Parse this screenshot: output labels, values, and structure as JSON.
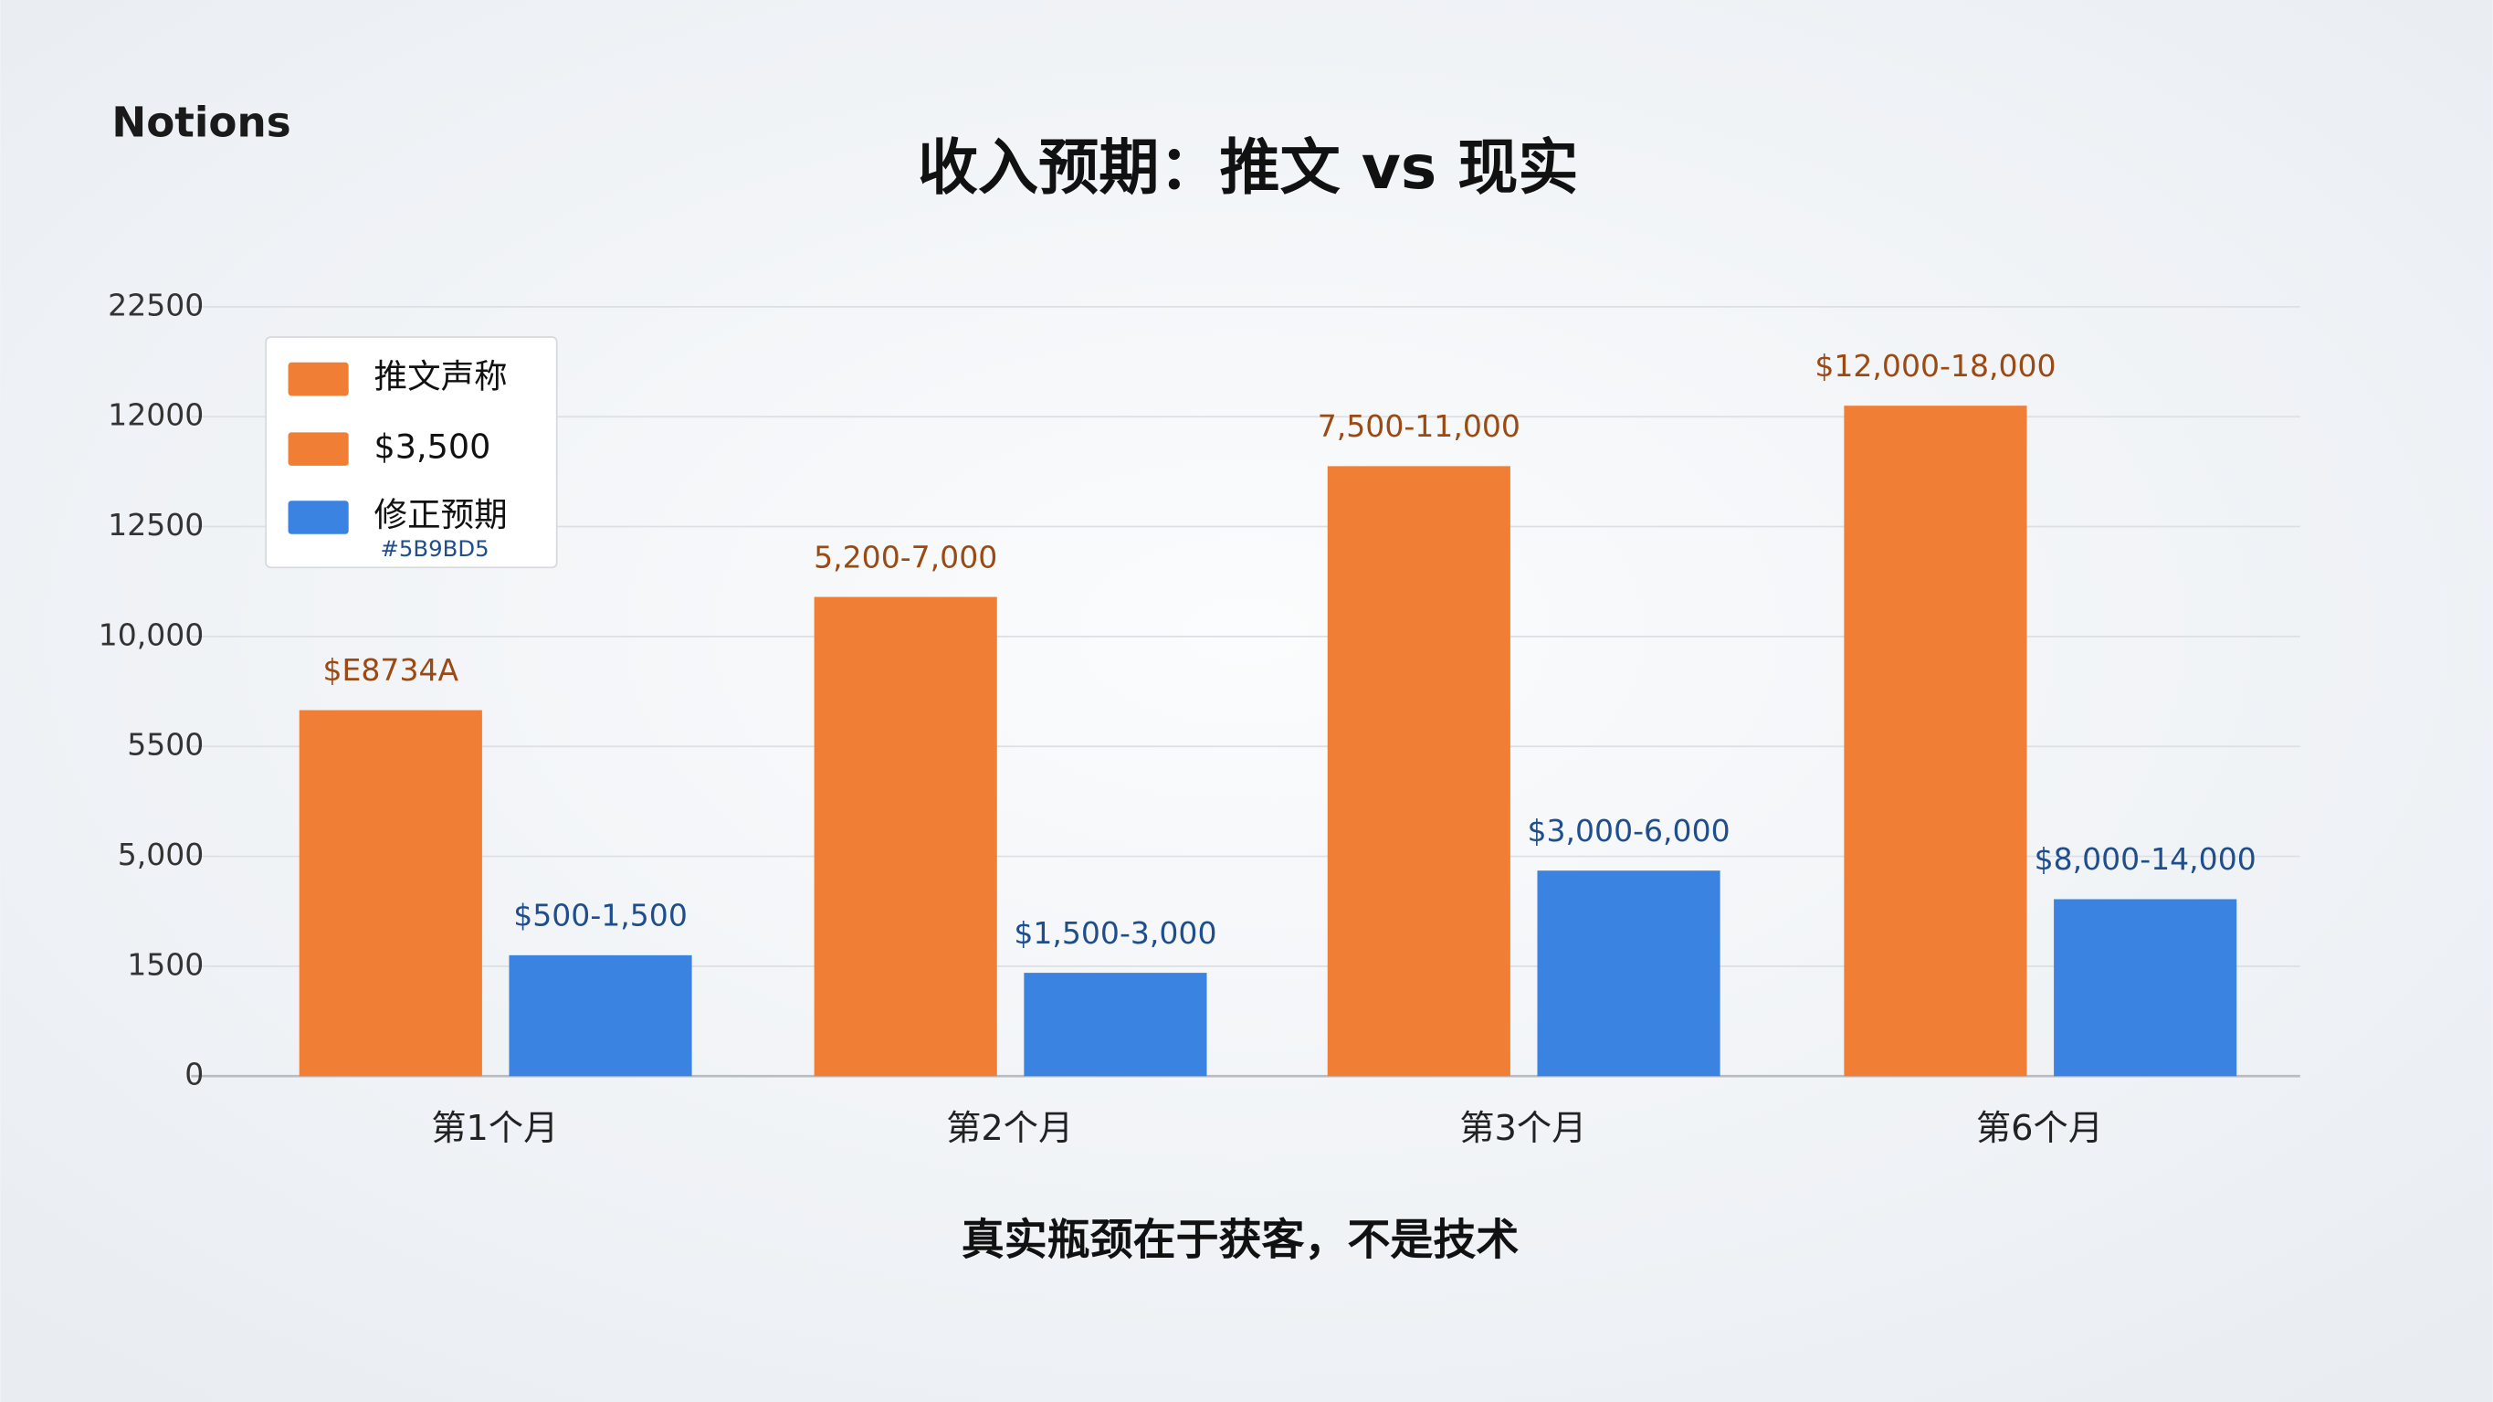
{
  "brand": "Notions",
  "chart_data": {
    "type": "bar",
    "title": "收入预期：推文 vs 现实",
    "subtitle": "真实瓶颈在于获客，不是技术",
    "categories": [
      "第1个月",
      "第2个月",
      "第3个月",
      "第6个月"
    ],
    "y_axis_labels": [
      "0",
      "1500",
      "5,000",
      "5500",
      "10,000",
      "12500",
      "12000",
      "22500"
    ],
    "ylim": [
      0,
      7
    ],
    "grid": true,
    "series": [
      {
        "name": "推文声称",
        "color": "#f07f35",
        "label_color": "#9a4a12",
        "values": [
          3.33,
          4.36,
          5.55,
          6.1
        ],
        "value_labels": [
          "$E8734A",
          "5,200-7,000",
          "7,500-11,000",
          "$12,000-18,000"
        ]
      },
      {
        "name": "修正预期",
        "color": "#3a83e0",
        "label_color": "#1f4e8c",
        "values": [
          1.1,
          0.94,
          1.87,
          1.61
        ],
        "value_labels": [
          "$500-1,500",
          "$1,500-3,000",
          "$3,000-6,000",
          "$8,000-14,000"
        ]
      }
    ],
    "legend": [
      {
        "label": "推文声称",
        "color": "#f07f35"
      },
      {
        "label": "$3,500",
        "color": "#f07f35"
      },
      {
        "label": "修正预期",
        "color": "#3a83e0",
        "note": "#5B9BD5"
      }
    ]
  }
}
